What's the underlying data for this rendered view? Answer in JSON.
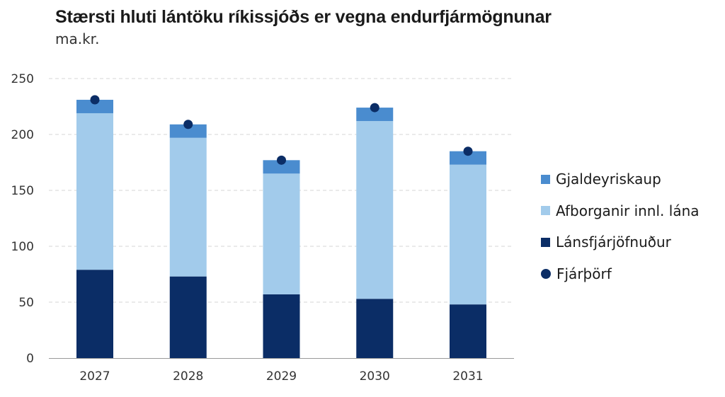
{
  "title": "Stærsti hluti lántöku ríkissjóðs er vegna endurfjármögnunar",
  "subtitle": "ma.kr.",
  "colors": {
    "gjaldeyriskaup": "#4a8ccf",
    "afborganir": "#a2cbeb",
    "lansfjarjofnudur": "#0b2d66",
    "fjarthorf": "#0b2d66",
    "grid": "#d4d4d4",
    "axis": "#9a9a9a"
  },
  "legend": [
    {
      "label": "Gjaldeyriskaup",
      "kind": "square",
      "color_key": "gjaldeyriskaup"
    },
    {
      "label": "Afborganir innl. lána",
      "kind": "square",
      "color_key": "afborganir"
    },
    {
      "label": "Lánsfjárjöfnuður",
      "kind": "square",
      "color_key": "lansfjarjofnudur"
    },
    {
      "label": "Fjárþörf",
      "kind": "dot",
      "color_key": "fjarthorf"
    }
  ],
  "chart_data": {
    "type": "bar",
    "stacked": true,
    "title": "Stærsti hluti lántöku ríkissjóðs er vegna endurfjármögnunar",
    "subtitle": "ma.kr.",
    "categories": [
      "2027",
      "2028",
      "2029",
      "2030",
      "2031"
    ],
    "series": [
      {
        "name": "Lánsfjárjöfnuður",
        "values": [
          79,
          73,
          57,
          53,
          48
        ]
      },
      {
        "name": "Afborganir innl. lána",
        "values": [
          140,
          124,
          108,
          159,
          125
        ]
      },
      {
        "name": "Gjaldeyriskaup",
        "values": [
          12,
          12,
          12,
          12,
          12
        ]
      }
    ],
    "markers": {
      "name": "Fjárþörf",
      "values": [
        231,
        209,
        177,
        224,
        185
      ]
    },
    "ylim": [
      0,
      250
    ],
    "yticks": [
      0,
      50,
      100,
      150,
      200,
      250
    ],
    "grid": true,
    "legend_position": "right"
  }
}
